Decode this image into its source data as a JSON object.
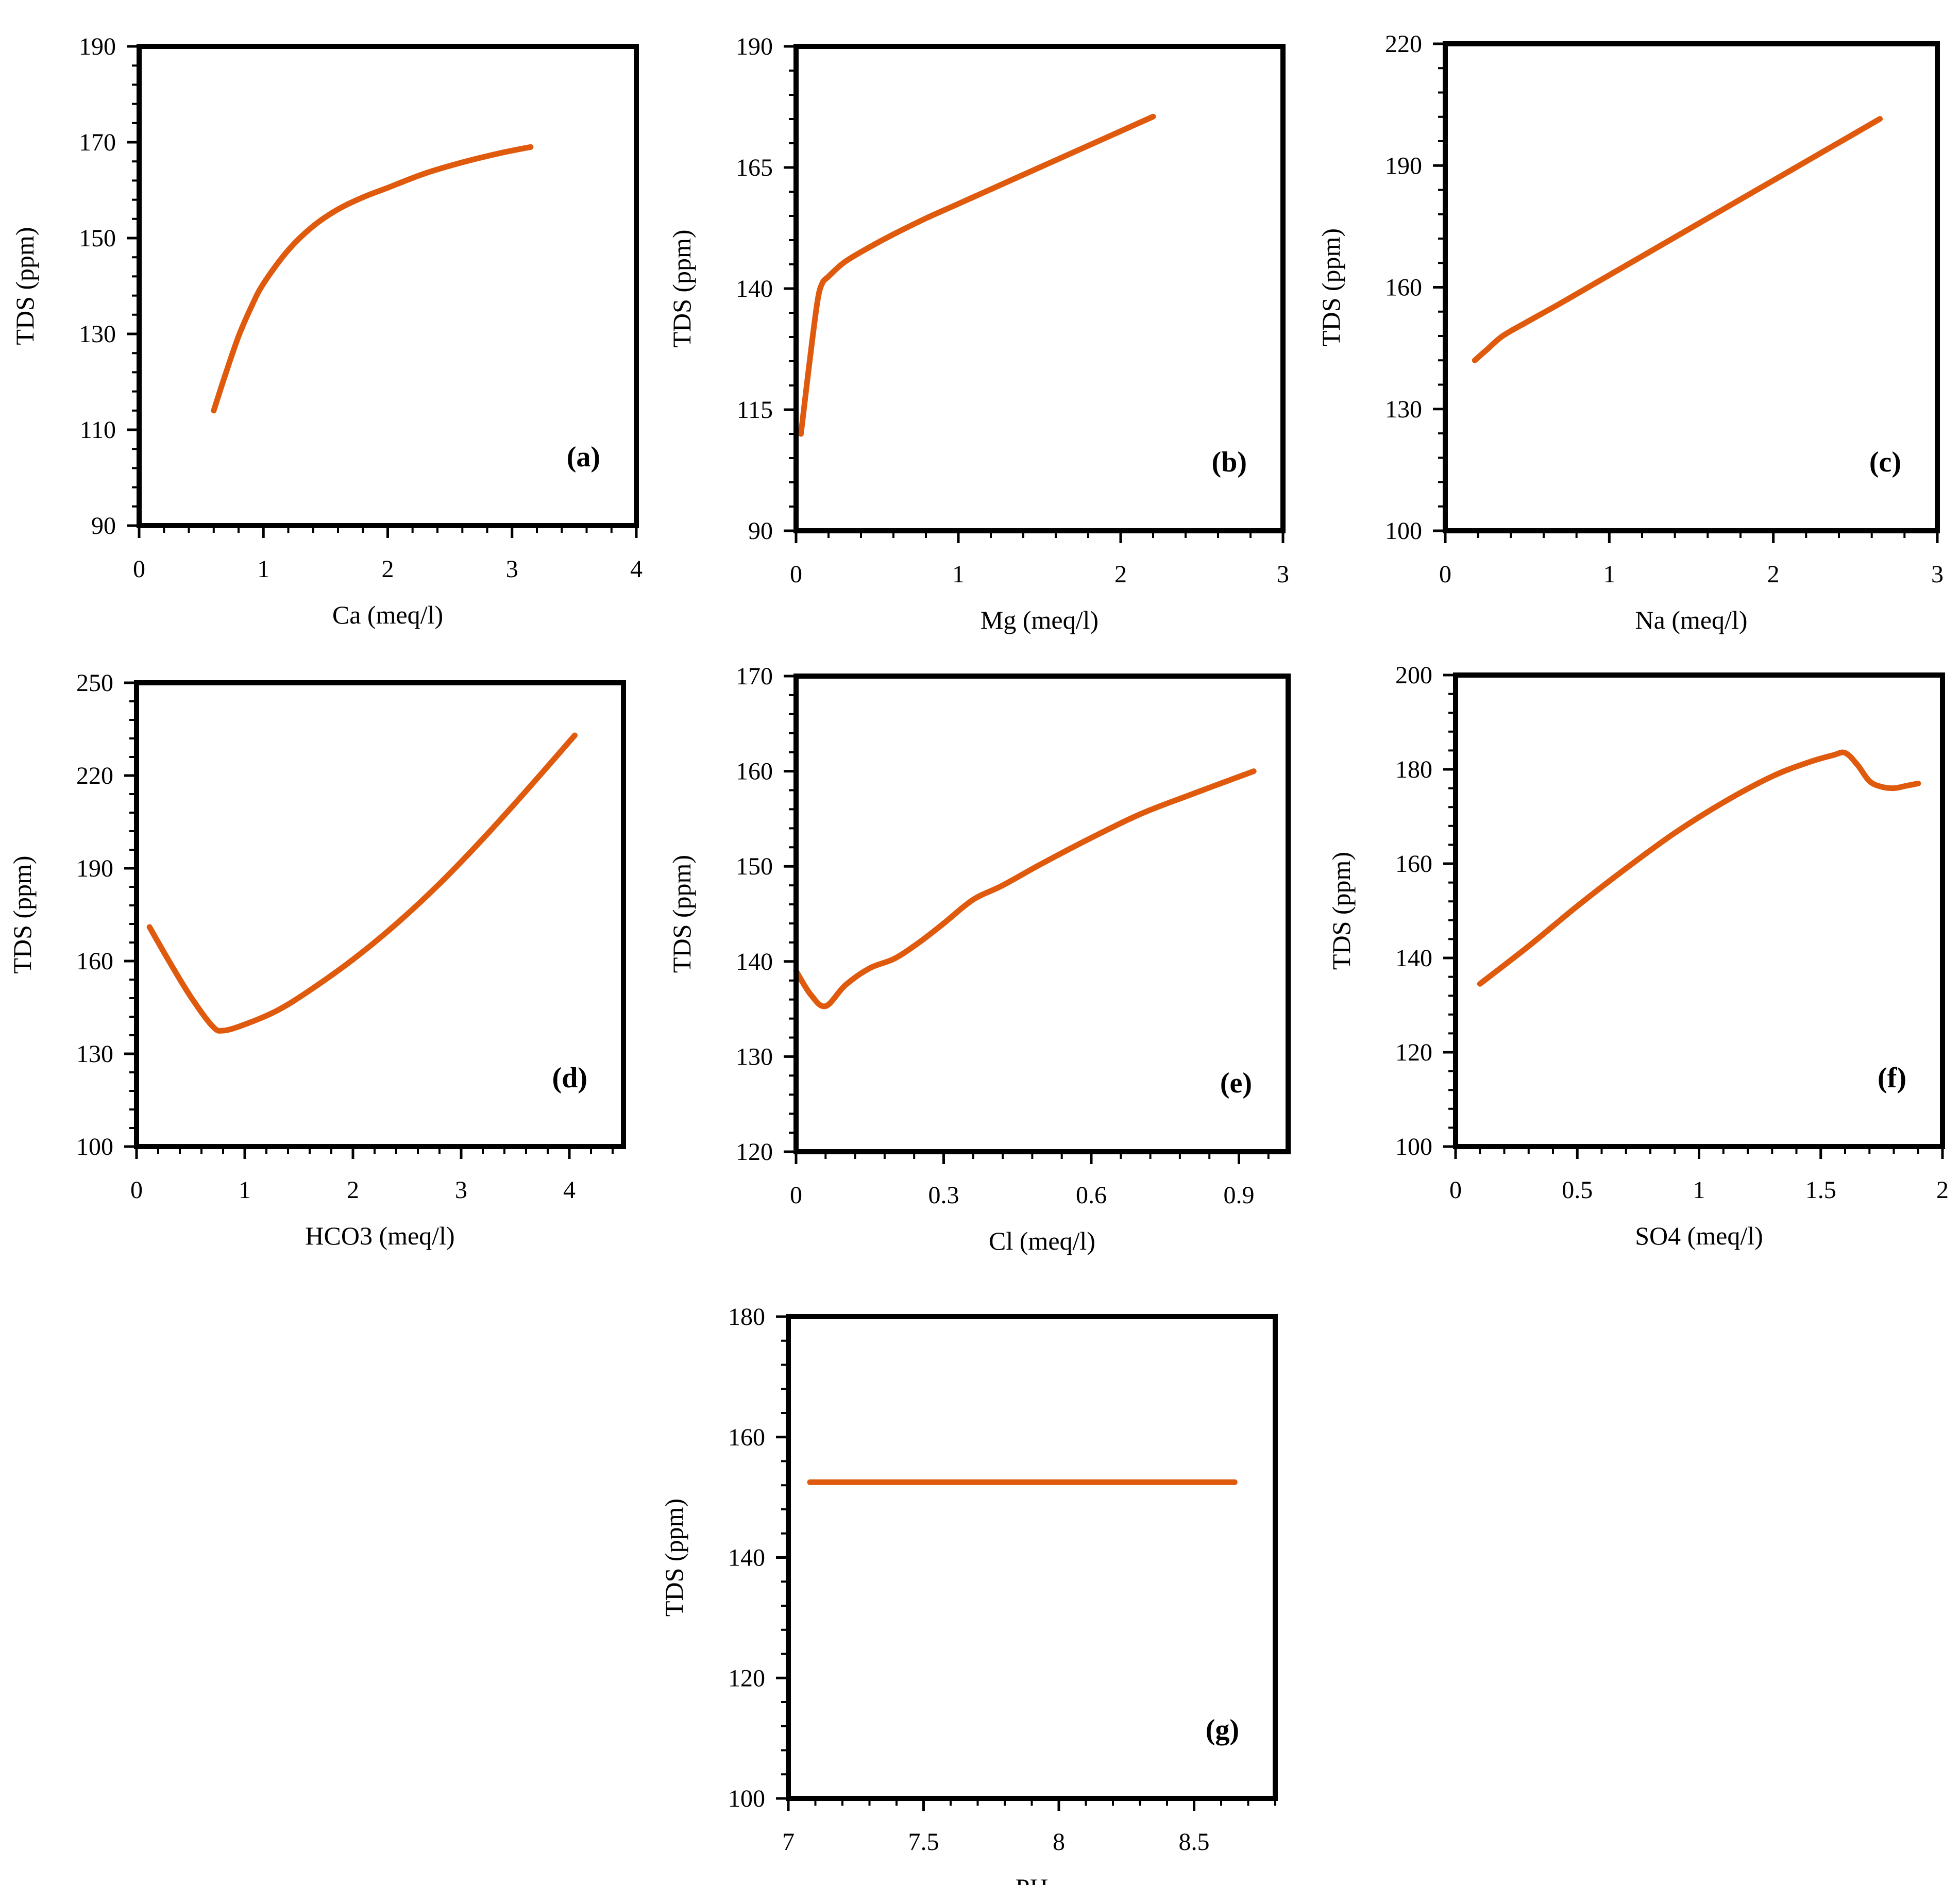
{
  "figure": {
    "line_color": "#E05A0E",
    "frame_color": "#000000"
  },
  "chart_data": [
    {
      "id": "a",
      "panel_label": "(a)",
      "type": "line",
      "xlabel": "Ca (meq/l)",
      "ylabel": "TDS (ppm)",
      "xlim": [
        0,
        4
      ],
      "ylim": [
        90,
        190
      ],
      "xticks": [
        0,
        1,
        2,
        3,
        4
      ],
      "xtick_labels": [
        "0",
        "1",
        "2",
        "3",
        "4"
      ],
      "yticks": [
        90,
        110,
        130,
        150,
        170,
        190
      ],
      "ytick_labels": [
        "90",
        "110",
        "130",
        "150",
        "170",
        "190"
      ],
      "series": [
        {
          "name": "TDS",
          "x": [
            0.6,
            0.7,
            0.8,
            0.9,
            1.0,
            1.2,
            1.4,
            1.6,
            1.8,
            2.0,
            2.3,
            2.6,
            2.9,
            3.15
          ],
          "y": [
            114,
            122,
            129.5,
            135.5,
            140.5,
            147.5,
            152.5,
            156,
            158.5,
            160.5,
            163.5,
            165.8,
            167.7,
            169
          ]
        }
      ]
    },
    {
      "id": "b",
      "panel_label": "(b)",
      "type": "line",
      "xlabel": "Mg (meq/l)",
      "ylabel": "TDS (ppm)",
      "xlim": [
        0,
        3
      ],
      "ylim": [
        90,
        190
      ],
      "xticks": [
        0,
        1,
        2,
        3
      ],
      "xtick_labels": [
        "0",
        "1",
        "2",
        "3"
      ],
      "yticks": [
        90,
        115,
        140,
        165,
        190
      ],
      "ytick_labels": [
        "90",
        "115",
        "140",
        "165",
        "190"
      ],
      "series": [
        {
          "name": "TDS",
          "x": [
            0.03,
            0.08,
            0.13,
            0.16,
            0.2,
            0.3,
            0.45,
            0.6,
            0.8,
            1.0,
            1.3,
            1.6,
            1.9,
            2.2
          ],
          "y": [
            110,
            124,
            137,
            141,
            142.5,
            145.5,
            148.5,
            151.2,
            154.5,
            157.5,
            162,
            166.5,
            171,
            175.5
          ]
        }
      ]
    },
    {
      "id": "c",
      "panel_label": "(c)",
      "type": "line",
      "xlabel": "Na (meq/l)",
      "ylabel": "TDS (ppm)",
      "xlim": [
        0,
        3
      ],
      "ylim": [
        100,
        220
      ],
      "xticks": [
        0,
        1,
        2,
        3
      ],
      "xtick_labels": [
        "0",
        "1",
        "2",
        "3"
      ],
      "yticks": [
        100,
        130,
        160,
        190,
        220
      ],
      "ytick_labels": [
        "100",
        "130",
        "160",
        "190",
        "220"
      ],
      "series": [
        {
          "name": "TDS",
          "x": [
            0.18,
            0.25,
            0.35,
            0.5,
            0.7,
            1.0,
            1.3,
            1.6,
            1.9,
            2.2,
            2.5,
            2.65
          ],
          "y": [
            142,
            144.5,
            148,
            151.5,
            156,
            163,
            170,
            177,
            184,
            191,
            198,
            201.5
          ]
        }
      ]
    },
    {
      "id": "d",
      "panel_label": "(d)",
      "type": "line",
      "xlabel": "HCO3 (meq/l)",
      "ylabel": "TDS (ppm)",
      "xlim": [
        0,
        4.5
      ],
      "ylim": [
        100,
        250
      ],
      "xticks": [
        0,
        1,
        2,
        3,
        4
      ],
      "xtick_labels": [
        "0",
        "1",
        "2",
        "3",
        "4"
      ],
      "yticks": [
        100,
        130,
        160,
        190,
        220,
        250
      ],
      "ytick_labels": [
        "100",
        "130",
        "160",
        "190",
        "220",
        "250"
      ],
      "series": [
        {
          "name": "TDS",
          "x": [
            0.12,
            0.3,
            0.5,
            0.7,
            0.8,
            1.0,
            1.3,
            1.6,
            2.0,
            2.4,
            2.8,
            3.2,
            3.6,
            4.05
          ],
          "y": [
            171,
            160,
            148.5,
            139,
            137.5,
            139.5,
            144,
            150.5,
            160.5,
            172,
            185,
            199.5,
            215,
            233
          ]
        }
      ]
    },
    {
      "id": "e",
      "panel_label": "(e)",
      "type": "line",
      "xlabel": "Cl (meq/l)",
      "ylabel": "TDS (ppm)",
      "xlim": [
        0,
        1
      ],
      "ylim": [
        120,
        170
      ],
      "xticks": [
        0,
        0.3,
        0.6,
        0.9
      ],
      "xtick_labels": [
        "0",
        "0.3",
        "0.6",
        "0.9"
      ],
      "yticks": [
        120,
        130,
        140,
        150,
        160,
        170
      ],
      "ytick_labels": [
        "120",
        "130",
        "140",
        "150",
        "160",
        "170"
      ],
      "series": [
        {
          "name": "TDS",
          "x": [
            0.0,
            0.03,
            0.06,
            0.1,
            0.15,
            0.2,
            0.25,
            0.3,
            0.36,
            0.42,
            0.5,
            0.6,
            0.7,
            0.8,
            0.93
          ],
          "y": [
            139,
            136.5,
            135.3,
            137.5,
            139.3,
            140.3,
            142,
            144,
            146.5,
            148,
            150.3,
            153,
            155.5,
            157.5,
            160
          ]
        }
      ]
    },
    {
      "id": "f",
      "panel_label": "(f)",
      "type": "line",
      "xlabel": "SO4 (meq/l)",
      "ylabel": "TDS (ppm)",
      "xlim": [
        0,
        2
      ],
      "ylim": [
        100,
        200
      ],
      "xticks": [
        0,
        0.5,
        1,
        1.5,
        2
      ],
      "xtick_labels": [
        "0",
        "0.5",
        "1",
        "1.5",
        "2"
      ],
      "yticks": [
        100,
        120,
        140,
        160,
        180,
        200
      ],
      "ytick_labels": [
        "100",
        "120",
        "140",
        "160",
        "180",
        "200"
      ],
      "series": [
        {
          "name": "TDS",
          "x": [
            0.1,
            0.3,
            0.5,
            0.7,
            0.9,
            1.1,
            1.3,
            1.45,
            1.55,
            1.6,
            1.65,
            1.7,
            1.75,
            1.8,
            1.85,
            1.9
          ],
          "y": [
            134.5,
            142.5,
            151,
            159,
            166.5,
            173,
            178.5,
            181.5,
            183,
            183.5,
            181,
            177.5,
            176.3,
            176,
            176.5,
            177
          ]
        }
      ]
    },
    {
      "id": "g",
      "panel_label": "(g)",
      "type": "line",
      "xlabel": "PH",
      "ylabel": "TDS (ppm)",
      "xlim": [
        7,
        8.8
      ],
      "ylim": [
        100,
        180
      ],
      "xticks": [
        7,
        7.5,
        8,
        8.5
      ],
      "xtick_labels": [
        "7",
        "7.5",
        "8",
        "8.5"
      ],
      "yticks": [
        100,
        120,
        140,
        160,
        180
      ],
      "ytick_labels": [
        "100",
        "120",
        "140",
        "160",
        "180"
      ],
      "series": [
        {
          "name": "TDS",
          "x": [
            7.08,
            8.65
          ],
          "y": [
            152.5,
            152.5
          ]
        }
      ]
    }
  ]
}
